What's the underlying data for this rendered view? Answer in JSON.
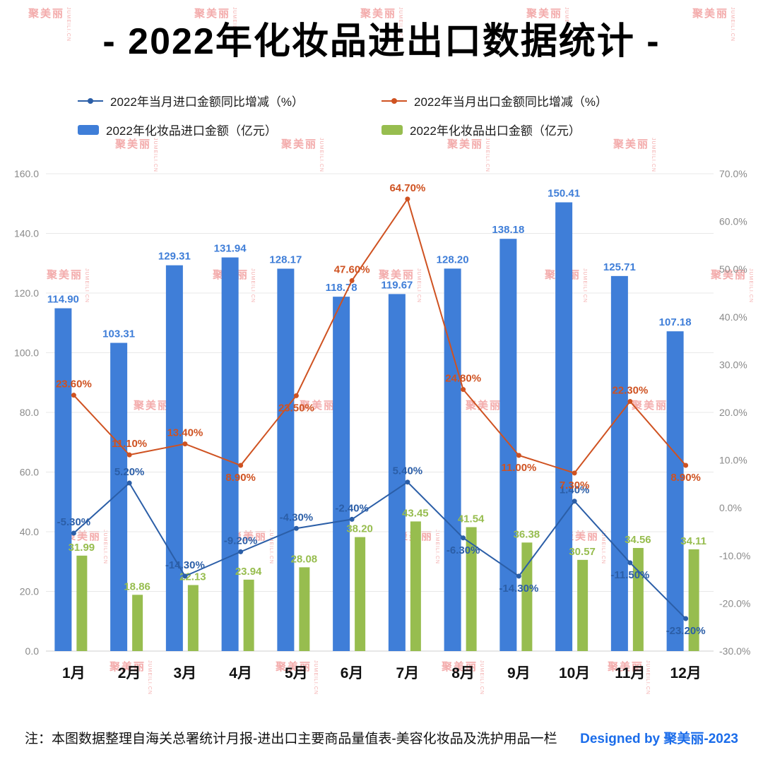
{
  "watermark": {
    "text": "聚美丽",
    "sub": "JUMEILI.CN"
  },
  "footnote": "注：本图数据整理自海关总署统计月报-进出口主要商品量值表-美容化妆品及洗护用品一栏",
  "credit": "Designed by 聚美丽-2023",
  "colors": {
    "import_bar": "#3f7ed8",
    "export_bar": "#97bd4f",
    "import_line": "#2b5ea7",
    "export_line": "#cf5221",
    "credit": "#1a6cea",
    "watermark": "#e85a5a",
    "grid": "#e8e8e8",
    "axis_text": "#8a8a8a"
  },
  "chart_data": {
    "type": "combo_bar_line",
    "title": "- 2022年化妆品进出口数据统计 -",
    "categories": [
      "1月",
      "2月",
      "3月",
      "4月",
      "5月",
      "6月",
      "7月",
      "8月",
      "9月",
      "10月",
      "11月",
      "12月"
    ],
    "left_axis": {
      "min": 0,
      "max": 160,
      "step": 20,
      "suffix": ""
    },
    "right_axis": {
      "min": -30,
      "max": 70,
      "step": 10,
      "suffix": "%"
    },
    "grid": true,
    "legend_position": "top",
    "series": [
      {
        "id": "import_yoy",
        "name": "2022年当月进口金额同比增减（%）",
        "type": "line",
        "axis": "right",
        "color_key": "import_line",
        "values": [
          -5.3,
          5.2,
          -14.3,
          -9.2,
          -4.3,
          -2.4,
          5.4,
          -6.3,
          -14.3,
          1.4,
          -11.5,
          -23.2
        ],
        "label_pos": [
          "above",
          "above",
          "above",
          "above",
          "above",
          "above",
          "above",
          "below",
          "below",
          "above",
          "below",
          "below"
        ]
      },
      {
        "id": "export_yoy",
        "name": "2022年当月出口金额同比增减（%）",
        "type": "line",
        "axis": "right",
        "color_key": "export_line",
        "values": [
          23.6,
          11.1,
          13.4,
          8.9,
          23.5,
          47.6,
          64.7,
          24.8,
          11.0,
          7.3,
          22.3,
          8.9
        ],
        "label_pos": [
          "above",
          "above",
          "above",
          "below",
          "below",
          "above",
          "above",
          "above",
          "below",
          "below",
          "above",
          "below"
        ]
      },
      {
        "id": "import_amount",
        "name": "2022年化妆品进口金额（亿元）",
        "type": "bar",
        "axis": "left",
        "color_key": "import_bar",
        "values": [
          114.9,
          103.31,
          129.31,
          131.94,
          128.17,
          118.78,
          119.67,
          128.2,
          138.18,
          150.41,
          125.71,
          107.18
        ]
      },
      {
        "id": "export_amount",
        "name": "2022年化妆品出口金额（亿元）",
        "type": "bar",
        "axis": "left",
        "color_key": "export_bar",
        "values": [
          31.99,
          18.86,
          22.13,
          23.94,
          28.08,
          38.2,
          43.45,
          41.54,
          36.38,
          30.57,
          34.56,
          34.11
        ]
      }
    ]
  }
}
